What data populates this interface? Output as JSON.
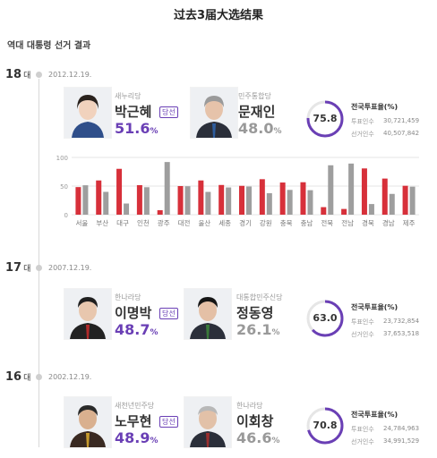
{
  "header": {
    "title": "过去3届大选结果"
  },
  "subtitle": "역대 대통령 선거 결과",
  "common": {
    "dae": "대",
    "winner_badge": "당선",
    "turnout_title": "전국투표율(%)",
    "voters_label": "투표인수",
    "electorate_label": "선거인수",
    "pct_unit": "%"
  },
  "colors": {
    "winner": "#6a3fb5",
    "red": "#d7303a",
    "gray": "#9e9e9e",
    "ring_bg": "#e6e6e6"
  },
  "elections": [
    {
      "number": "18",
      "date": "2012.12.19.",
      "winner": {
        "party": "새누리당",
        "name": "박근혜",
        "pct": "51.6"
      },
      "loser": {
        "party": "민주통합당",
        "name": "문재인",
        "pct": "48.0"
      },
      "turnout": "75.8",
      "turnout_value": 75.8,
      "voters": "30,721,459",
      "electorate": "40,507,842"
    },
    {
      "number": "17",
      "date": "2007.12.19.",
      "winner": {
        "party": "한나라당",
        "name": "이명박",
        "pct": "48.7"
      },
      "loser": {
        "party": "대통합민주신당",
        "name": "정동영",
        "pct": "26.1"
      },
      "turnout": "63.0",
      "turnout_value": 63.0,
      "voters": "23,732,854",
      "electorate": "37,653,518"
    },
    {
      "number": "16",
      "date": "2002.12.19.",
      "winner": {
        "party": "새천년민주당",
        "name": "노무현",
        "pct": "48.9"
      },
      "loser": {
        "party": "한나라당",
        "name": "이회창",
        "pct": "46.6"
      },
      "turnout": "70.8",
      "turnout_value": 70.8,
      "voters": "24,784,963",
      "electorate": "34,991,529"
    }
  ],
  "chart_data": {
    "type": "bar",
    "categories": [
      "서울",
      "부산",
      "대구",
      "인천",
      "광주",
      "대전",
      "울산",
      "세종",
      "경기",
      "강원",
      "충북",
      "충남",
      "전북",
      "전남",
      "경북",
      "경남",
      "제주"
    ],
    "series": [
      {
        "name": "박근혜",
        "color": "#d7303a",
        "values": [
          48.2,
          59.8,
          80.1,
          51.6,
          7.8,
          50.0,
          59.8,
          51.9,
          50.4,
          62.0,
          56.2,
          56.7,
          13.2,
          10.0,
          80.8,
          63.1,
          50.5
        ]
      },
      {
        "name": "문재인",
        "color": "#9e9e9e",
        "values": [
          51.4,
          39.9,
          19.5,
          48.0,
          92.0,
          49.7,
          39.8,
          47.6,
          49.2,
          37.5,
          43.3,
          42.8,
          86.3,
          89.3,
          18.6,
          36.3,
          48.9
        ]
      }
    ],
    "ylim": [
      0,
      100
    ],
    "yticks": [
      0,
      50,
      100
    ],
    "grid": true,
    "legend": "none"
  }
}
